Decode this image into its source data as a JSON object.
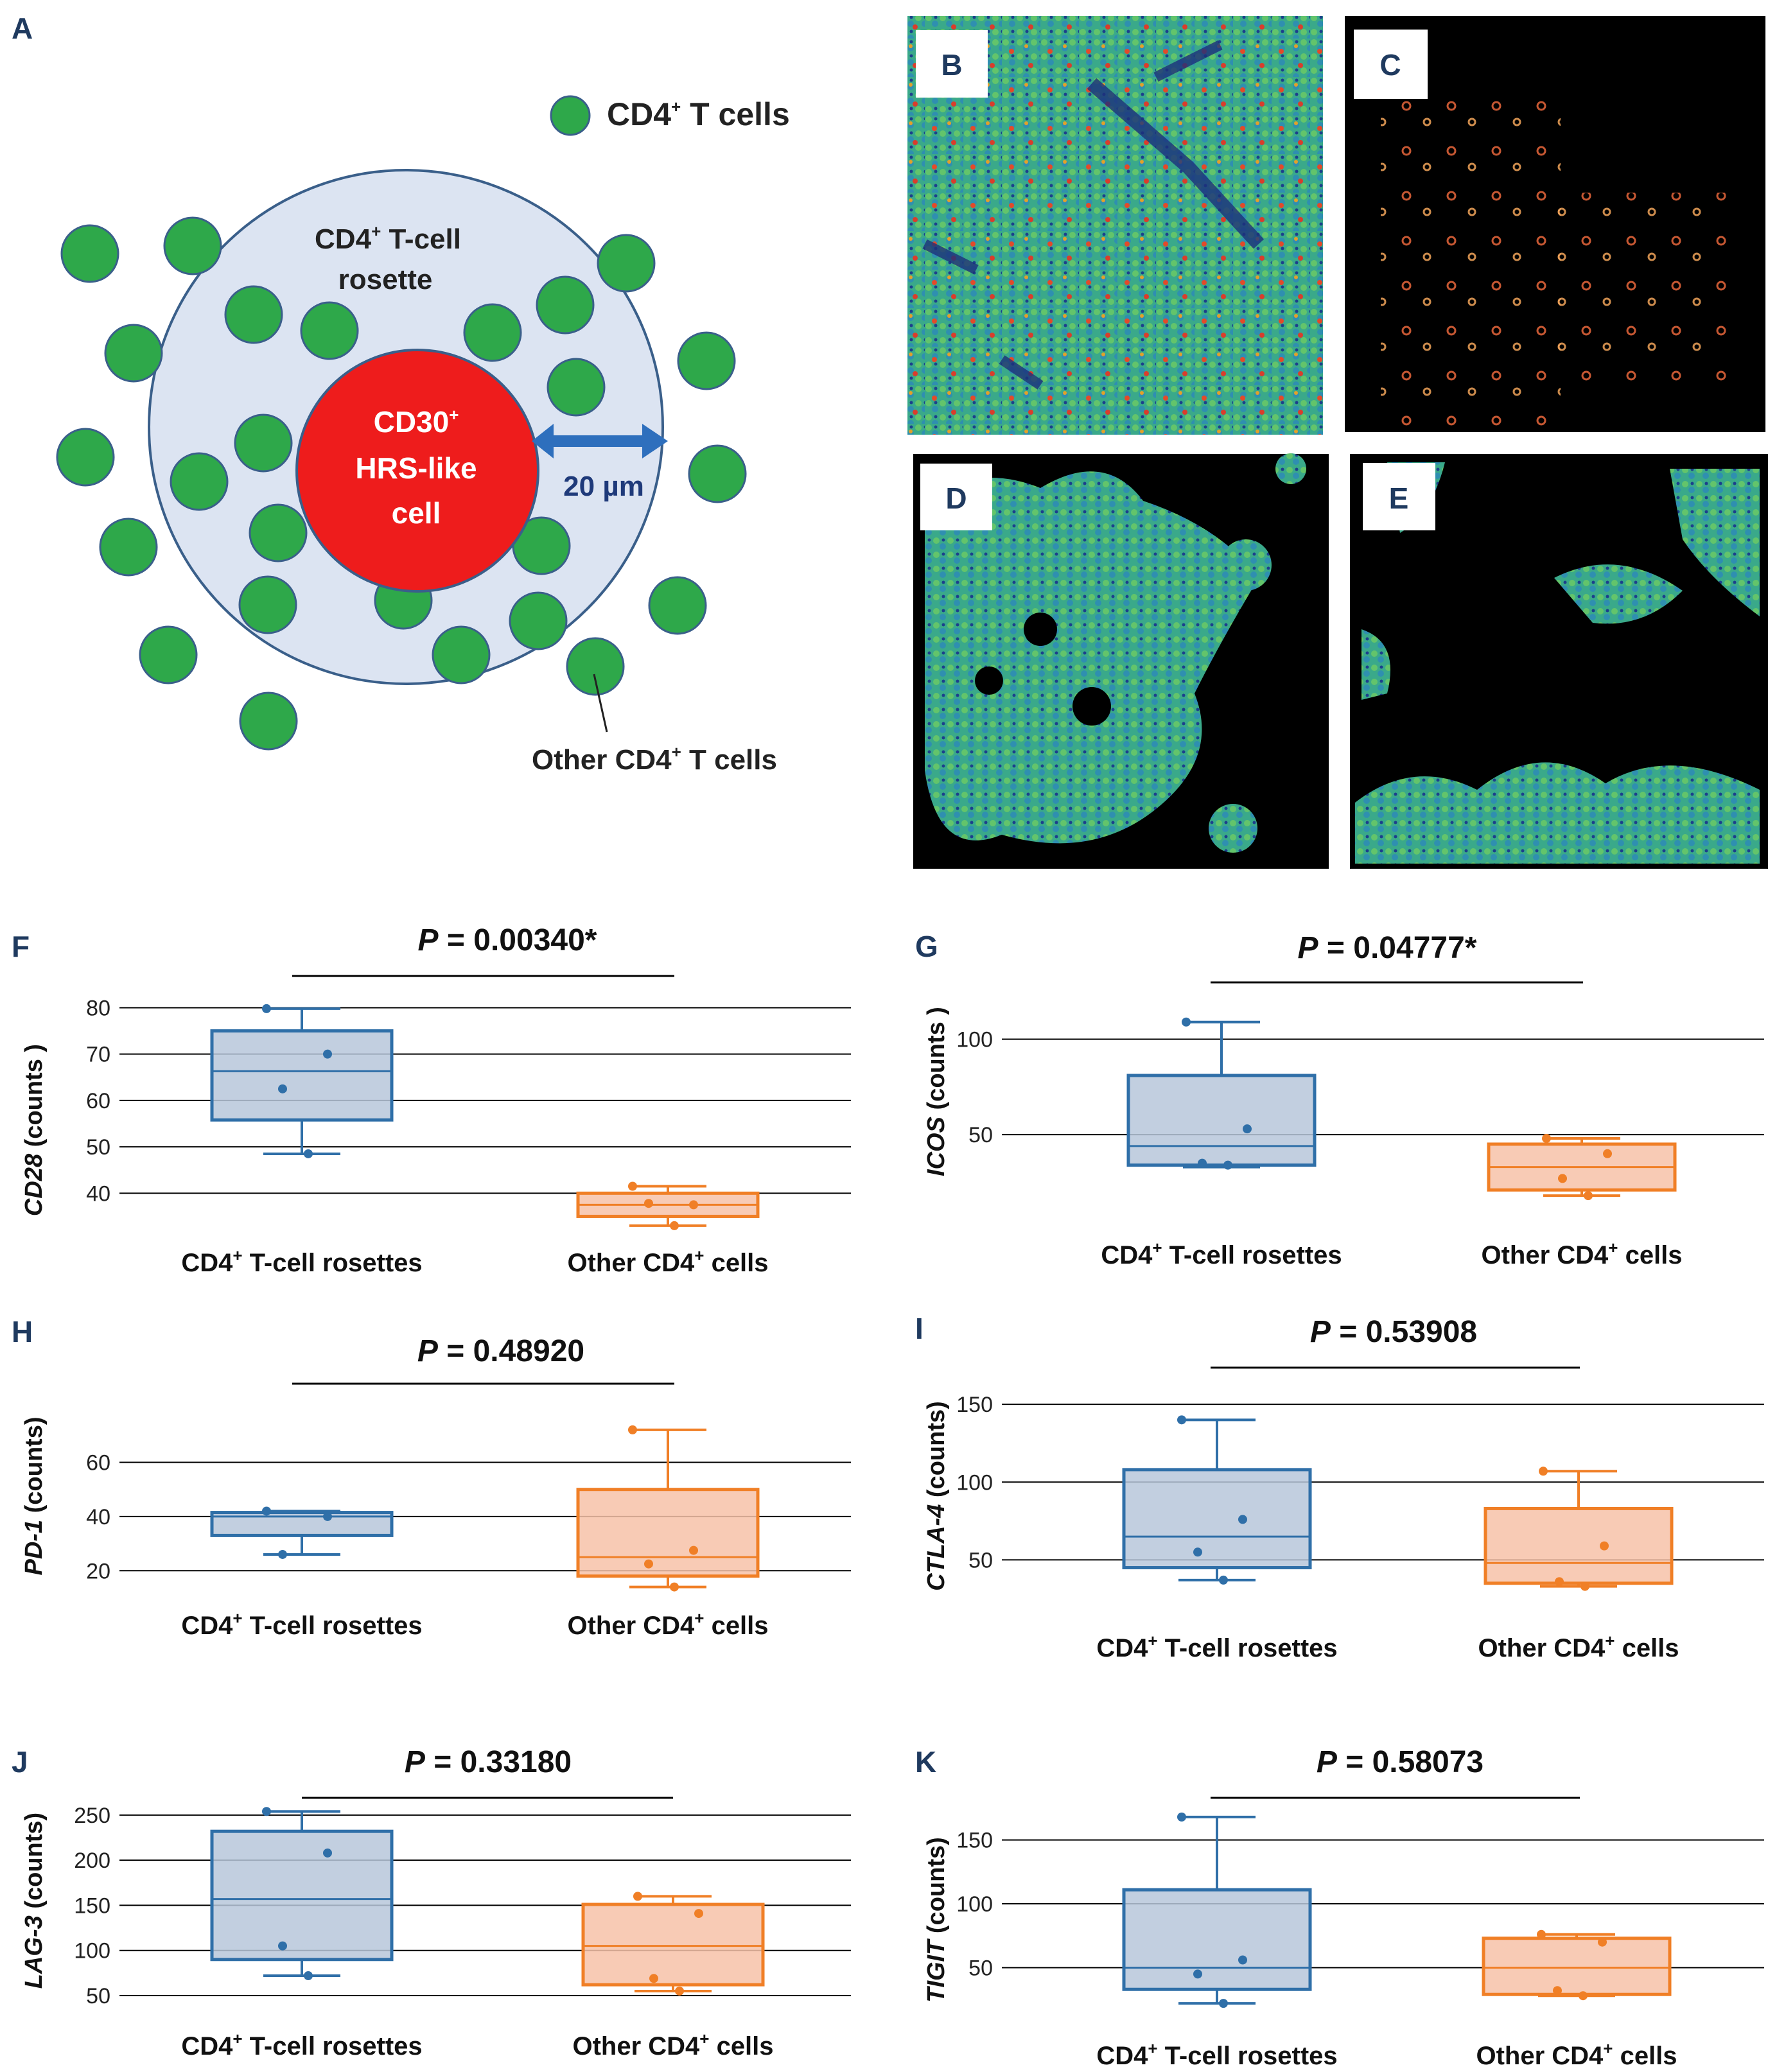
{
  "panel_letters": [
    "A",
    "B",
    "C",
    "D",
    "E",
    "F",
    "G",
    "H",
    "I",
    "J",
    "K"
  ],
  "diagram": {
    "legend_label": "CD4",
    "legend_sup": "+",
    "legend_suffix": " T cells",
    "rosette_line1": "CD4",
    "rosette_sup": "+",
    "rosette_line1_suffix": " T-cell",
    "rosette_line2": "rosette",
    "hrs_line1": "CD30",
    "hrs_sup": "+",
    "hrs_line2": "HRS-like",
    "hrs_line3": "cell",
    "distance_label": "20 µm",
    "other_label": "Other CD4",
    "other_sup": "+",
    "other_suffix": " T cells",
    "colors": {
      "tcell": "#2ea84a",
      "rosette_fill": "#dce4f2",
      "rosette_stroke": "#3a5f8a",
      "hrs": "#ee1c1c",
      "arrow": "#2e6fbd"
    }
  },
  "images": {
    "colors": {
      "tissue": "#3fae8a",
      "background": "#000000"
    }
  },
  "chart_data": [
    {
      "panel": "F",
      "type": "box",
      "ylabel_gene": "CD28",
      "ylabel_rest": " (counts )",
      "p_label": "P",
      "p_value": " = 0.00340*",
      "yticks": [
        40,
        50,
        60,
        70,
        80
      ],
      "ylim": [
        37,
        82
      ],
      "categories": [
        "CD4",
        "Other CD4"
      ],
      "cat_sup": [
        "+",
        "+"
      ],
      "cat_suffix": [
        " T-cell rosettes",
        " cells"
      ],
      "series": [
        {
          "min": 48.5,
          "q1": 55.8,
          "median": 66.3,
          "q3": 75.0,
          "max": 79.8,
          "points": [
            79.8,
            70.0,
            62.5,
            48.5
          ]
        },
        {
          "min": 33.0,
          "q1": 35.0,
          "median": 37.5,
          "q3": 40.0,
          "max": 41.5,
          "points": [
            41.5,
            37.5,
            37.8,
            33.0
          ]
        }
      ]
    },
    {
      "panel": "G",
      "type": "box",
      "ylabel_gene": "ICOS",
      "ylabel_rest": " (counts )",
      "p_label": "P",
      "p_value": " = 0.04777*",
      "yticks": [
        50,
        100
      ],
      "ylim": [
        12,
        118
      ],
      "categories": [
        "CD4",
        "Other CD4"
      ],
      "cat_sup": [
        "+",
        "+"
      ],
      "cat_suffix": [
        " T-cell rosettes",
        " cells"
      ],
      "series": [
        {
          "min": 33.0,
          "q1": 34.0,
          "median": 44.0,
          "q3": 81.0,
          "max": 109.0,
          "points": [
            109.0,
            53.0,
            35.0,
            34.0
          ]
        },
        {
          "min": 18.0,
          "q1": 21.0,
          "median": 33.0,
          "q3": 45.0,
          "max": 48.0,
          "points": [
            48.0,
            40.0,
            27.0,
            18.0
          ]
        }
      ]
    },
    {
      "panel": "H",
      "type": "box",
      "ylabel_gene": "PD-1",
      "ylabel_rest": " (counts)",
      "p_label": "P",
      "p_value": " = 0.48920",
      "yticks": [
        20,
        40,
        60
      ],
      "ylim": [
        12,
        76
      ],
      "categories": [
        "CD4",
        "Other CD4"
      ],
      "cat_sup": [
        "+",
        "+"
      ],
      "cat_suffix": [
        " T-cell rosettes",
        " cells"
      ],
      "series": [
        {
          "min": 26.0,
          "q1": 33.0,
          "median": 40.0,
          "q3": 41.5,
          "max": 42.0,
          "points": [
            42.0,
            40.0,
            26.0
          ]
        },
        {
          "min": 14.0,
          "q1": 18.0,
          "median": 25.0,
          "q3": 50.0,
          "max": 72.0,
          "points": [
            72.0,
            27.5,
            22.5,
            14.0
          ]
        }
      ]
    },
    {
      "panel": "I",
      "type": "box",
      "ylabel_gene": "CTLA-4",
      "ylabel_rest": " (counts)",
      "p_label": "P",
      "p_value": "  = 0.53908",
      "yticks": [
        50,
        100,
        150
      ],
      "ylim": [
        25,
        155
      ],
      "categories": [
        "CD4",
        "Other CD4"
      ],
      "cat_sup": [
        "+",
        "+"
      ],
      "cat_suffix": [
        " T-cell rosettes",
        " cells"
      ],
      "series": [
        {
          "min": 37.0,
          "q1": 45.0,
          "median": 65.0,
          "q3": 108.0,
          "max": 140.0,
          "points": [
            140.0,
            76.0,
            55.0,
            37.0
          ]
        },
        {
          "min": 33.0,
          "q1": 35.0,
          "median": 48.0,
          "q3": 83.0,
          "max": 107.0,
          "points": [
            107.0,
            59.0,
            36.0,
            33.0
          ]
        }
      ]
    },
    {
      "panel": "J",
      "type": "box",
      "ylabel_gene": "LAG-3",
      "ylabel_rest": " (counts)",
      "p_label": "P",
      "p_value": " = 0.33180",
      "yticks": [
        50,
        100,
        150,
        200,
        250
      ],
      "ylim": [
        45,
        262
      ],
      "categories": [
        "CD4",
        "Other CD4"
      ],
      "cat_sup": [
        "+",
        "+"
      ],
      "cat_suffix": [
        " T-cell rosettes",
        " cells"
      ],
      "series": [
        {
          "min": 72.0,
          "q1": 90.0,
          "median": 157.0,
          "q3": 232.0,
          "max": 254.0,
          "points": [
            254.0,
            208.0,
            105.0,
            72.0
          ]
        },
        {
          "min": 55.0,
          "q1": 62.0,
          "median": 105.0,
          "q3": 151.0,
          "max": 160.0,
          "points": [
            160.0,
            141.0,
            69.0,
            55.0
          ]
        }
      ]
    },
    {
      "panel": "K",
      "type": "box",
      "ylabel_gene": "TIGIT",
      "ylabel_rest": " (counts)",
      "p_label": "P",
      "p_value": " = 0.58073",
      "yticks": [
        50,
        100,
        150
      ],
      "ylim": [
        12,
        178
      ],
      "categories": [
        "CD4",
        "Other CD4"
      ],
      "cat_sup": [
        "+",
        "+"
      ],
      "cat_suffix": [
        " T-cell rosettes",
        " cells"
      ],
      "series": [
        {
          "min": 22.0,
          "q1": 33.0,
          "median": 50.0,
          "q3": 111.0,
          "max": 168.0,
          "points": [
            168.0,
            56.0,
            45.0,
            22.0
          ]
        },
        {
          "min": 28.0,
          "q1": 29.0,
          "median": 50.0,
          "q3": 73.0,
          "max": 76.0,
          "points": [
            76.0,
            70.0,
            32.0,
            28.0
          ]
        }
      ]
    }
  ],
  "style_colors": {
    "blue": "#2f6fa8",
    "blue_fill": "#b7c7db",
    "orange": "#f07f26",
    "orange_fill": "#f7c2a8",
    "grid": "#000000"
  }
}
